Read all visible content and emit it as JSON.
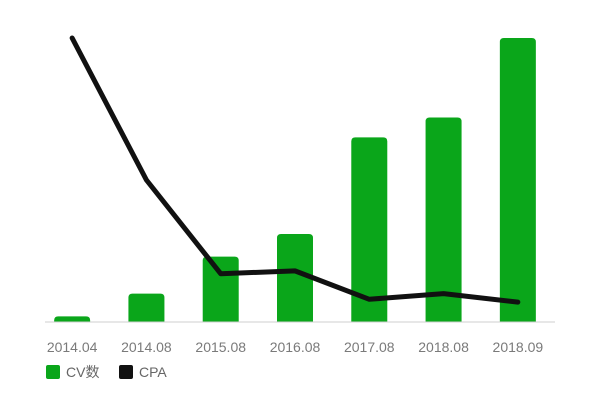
{
  "chart_data": {
    "type": "bar",
    "categories": [
      "2014.04",
      "2014.08",
      "2015.08",
      "2016.08",
      "2017.08",
      "2018.08",
      "2018.09"
    ],
    "series": [
      {
        "name": "CV数",
        "type": "bar",
        "color": "#0aa61a",
        "values": [
          2,
          10,
          23,
          31,
          65,
          72,
          100
        ]
      },
      {
        "name": "CPA",
        "type": "line",
        "color": "#111111",
        "values": [
          100,
          50,
          17,
          18,
          8,
          10,
          7
        ]
      }
    ],
    "title": "",
    "xlabel": "",
    "ylabel": "",
    "ylim": [
      0,
      100
    ],
    "grid": false,
    "legend": "bottom-left"
  }
}
